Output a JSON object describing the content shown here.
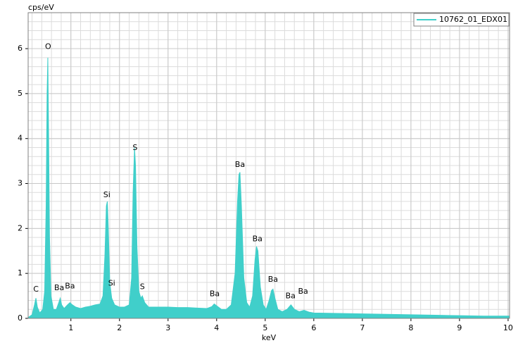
{
  "chart_data": {
    "type": "area",
    "y_label": "cps/eV",
    "x_label": "keV",
    "xlim": [
      0.12,
      10.03
    ],
    "ylim": [
      0,
      6.8
    ],
    "xticks": [
      1,
      2,
      3,
      4,
      5,
      6,
      7,
      8,
      9,
      10
    ],
    "yticks": [
      0,
      1,
      2,
      3,
      4,
      5,
      6
    ],
    "grid": true,
    "legend": "top-right",
    "series": [
      {
        "name": "10762_01_EDX01",
        "color": "#40cfca",
        "x": [
          0.12,
          0.2,
          0.25,
          0.28,
          0.31,
          0.36,
          0.42,
          0.46,
          0.49,
          0.51,
          0.525,
          0.54,
          0.56,
          0.59,
          0.64,
          0.7,
          0.75,
          0.78,
          0.81,
          0.86,
          0.93,
          0.98,
          1.03,
          1.1,
          1.2,
          1.3,
          1.4,
          1.5,
          1.6,
          1.66,
          1.7,
          1.73,
          1.75,
          1.77,
          1.8,
          1.84,
          1.9,
          2.0,
          2.1,
          2.2,
          2.25,
          2.28,
          2.31,
          2.33,
          2.36,
          2.4,
          2.44,
          2.47,
          2.52,
          2.6,
          2.8,
          3.0,
          3.2,
          3.4,
          3.6,
          3.8,
          3.9,
          3.95,
          4.0,
          4.1,
          4.2,
          4.3,
          4.38,
          4.43,
          4.46,
          4.48,
          4.51,
          4.56,
          4.62,
          4.68,
          4.74,
          4.79,
          4.82,
          4.85,
          4.9,
          4.96,
          5.02,
          5.08,
          5.13,
          5.16,
          5.2,
          5.26,
          5.35,
          5.45,
          5.53,
          5.6,
          5.7,
          5.8,
          5.9,
          6.0,
          6.5,
          7.0,
          7.5,
          8.0,
          8.5,
          9.0,
          9.5,
          10.03
        ],
        "values": [
          0.02,
          0.08,
          0.3,
          0.45,
          0.25,
          0.12,
          0.2,
          0.6,
          2.5,
          5.0,
          5.8,
          4.2,
          1.8,
          0.5,
          0.2,
          0.2,
          0.35,
          0.45,
          0.3,
          0.22,
          0.3,
          0.35,
          0.3,
          0.25,
          0.22,
          0.25,
          0.27,
          0.3,
          0.32,
          0.5,
          1.4,
          2.5,
          2.6,
          2.0,
          0.8,
          0.45,
          0.3,
          0.25,
          0.25,
          0.3,
          0.9,
          2.8,
          3.8,
          3.4,
          1.6,
          0.6,
          0.45,
          0.5,
          0.35,
          0.25,
          0.25,
          0.25,
          0.24,
          0.24,
          0.23,
          0.22,
          0.26,
          0.32,
          0.28,
          0.2,
          0.2,
          0.3,
          1.0,
          2.6,
          3.2,
          3.25,
          2.5,
          0.9,
          0.35,
          0.25,
          0.5,
          1.3,
          1.6,
          1.5,
          0.7,
          0.3,
          0.2,
          0.4,
          0.62,
          0.65,
          0.45,
          0.2,
          0.15,
          0.2,
          0.3,
          0.2,
          0.15,
          0.18,
          0.14,
          0.12,
          0.11,
          0.1,
          0.09,
          0.08,
          0.07,
          0.06,
          0.05,
          0.05
        ]
      }
    ],
    "annotations": [
      {
        "text": "C",
        "x": 0.28,
        "y": 0.55
      },
      {
        "text": "O",
        "x": 0.53,
        "y": 5.95
      },
      {
        "text": "Ba",
        "x": 0.76,
        "y": 0.58
      },
      {
        "text": "Ba",
        "x": 0.98,
        "y": 0.62
      },
      {
        "text": "Si",
        "x": 1.74,
        "y": 2.65
      },
      {
        "text": "Si",
        "x": 1.84,
        "y": 0.68
      },
      {
        "text": "S",
        "x": 2.32,
        "y": 3.7
      },
      {
        "text": "S",
        "x": 2.47,
        "y": 0.6
      },
      {
        "text": "Ba",
        "x": 3.96,
        "y": 0.45
      },
      {
        "text": "Ba",
        "x": 4.48,
        "y": 3.32
      },
      {
        "text": "Ba",
        "x": 4.84,
        "y": 1.67
      },
      {
        "text": "Ba",
        "x": 5.16,
        "y": 0.77
      },
      {
        "text": "Ba",
        "x": 5.52,
        "y": 0.4
      },
      {
        "text": "Ba",
        "x": 5.78,
        "y": 0.5
      }
    ]
  }
}
